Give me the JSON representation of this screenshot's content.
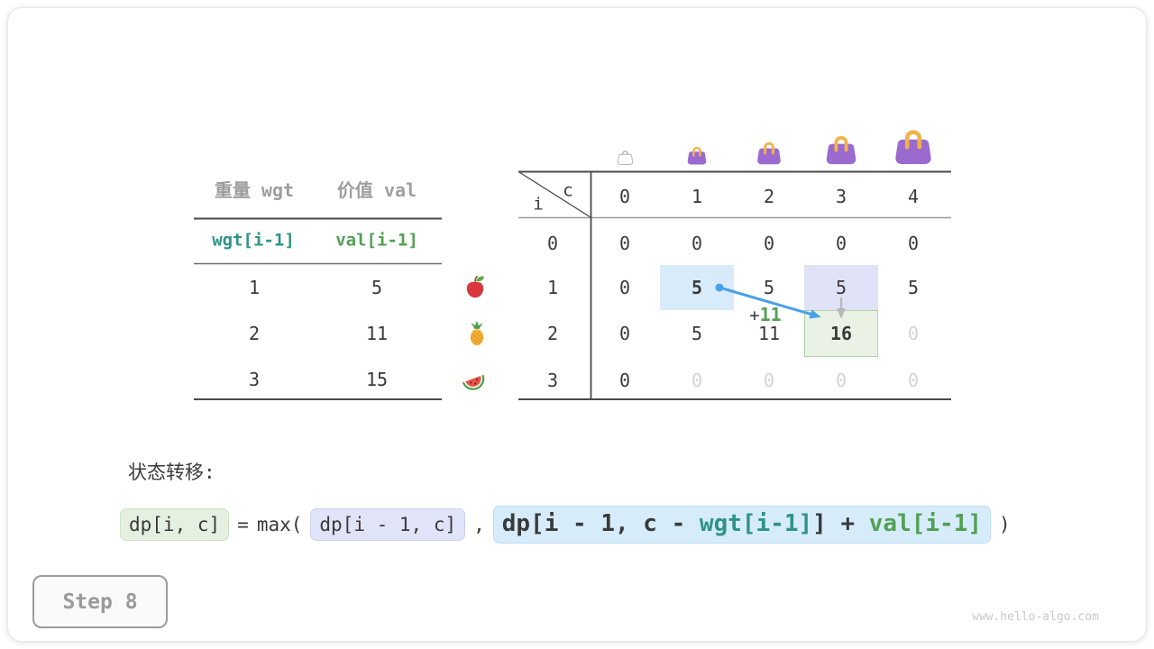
{
  "colors": {
    "teal": "#2e9488",
    "green": "#52a053",
    "dark_text": "#3a3a3a",
    "dim_text": "#d2d2d2",
    "muted_header": "#9e9e9e",
    "highlight_blue": "#d8ebfa",
    "highlight_lavender": "#e0e3f7",
    "highlight_green_fill": "#e9f2e5",
    "highlight_green_border": "#afd3a8",
    "arrow_blue": "#4ba0e8",
    "arrow_gray": "#b8b8b8",
    "bag_purple": "#9a6acf",
    "bag_handle_orange": "#f2b24c"
  },
  "item_table": {
    "headers": {
      "weight": "重量 wgt",
      "value": "价值 val"
    },
    "sub_headers": {
      "weight": "wgt[i-1]",
      "value": "val[i-1]"
    },
    "rows": [
      {
        "icon": "apple",
        "wgt": "1",
        "val": "5"
      },
      {
        "icon": "pineapple",
        "wgt": "2",
        "val": "11"
      },
      {
        "icon": "watermelon",
        "wgt": "3",
        "val": "15"
      }
    ]
  },
  "dp_table": {
    "corner": {
      "col_var": "c",
      "row_var": "i"
    },
    "col_headers": [
      "0",
      "1",
      "2",
      "3",
      "4"
    ],
    "row_headers": [
      "0",
      "1",
      "2",
      "3"
    ],
    "cells": [
      [
        "0",
        "0",
        "0",
        "0",
        "0"
      ],
      [
        "0",
        "5",
        "5",
        "5",
        "5"
      ],
      [
        "0",
        "5",
        "11",
        "16",
        "0"
      ],
      [
        "0",
        "0",
        "0",
        "0",
        "0"
      ]
    ],
    "cell_styles": [
      [
        "",
        "",
        "",
        "",
        ""
      ],
      [
        "",
        "bold",
        "",
        "",
        ""
      ],
      [
        "",
        "",
        "",
        "bold",
        "dim"
      ],
      [
        "",
        "dim",
        "dim",
        "dim",
        "dim"
      ]
    ],
    "highlights": [
      {
        "row": 1,
        "col": 1,
        "kind": "blue"
      },
      {
        "row": 1,
        "col": 3,
        "kind": "lavender"
      },
      {
        "row": 2,
        "col": 3,
        "kind": "green"
      }
    ],
    "annotation": {
      "plus": "+",
      "value": "11"
    },
    "bags": [
      "bag-empty",
      "bag-capacity-1",
      "bag-capacity-2",
      "bag-capacity-3",
      "bag-capacity-4"
    ]
  },
  "transition": {
    "label": "状态转移:",
    "lhs": "dp[i, c]",
    "equals": "=",
    "max_open": "max(",
    "arg1": "dp[i - 1, c]",
    "separator": ",",
    "arg2": [
      {
        "text": "dp[i - 1, c - ",
        "color": "dark"
      },
      {
        "text": "wgt[i-1]",
        "color": "teal"
      },
      {
        "text": "] + ",
        "color": "dark"
      },
      {
        "text": "val[i-1]",
        "color": "green"
      }
    ],
    "close": ")"
  },
  "footer": {
    "step_label": "Step 8",
    "watermark": "www.hello-algo.com"
  }
}
